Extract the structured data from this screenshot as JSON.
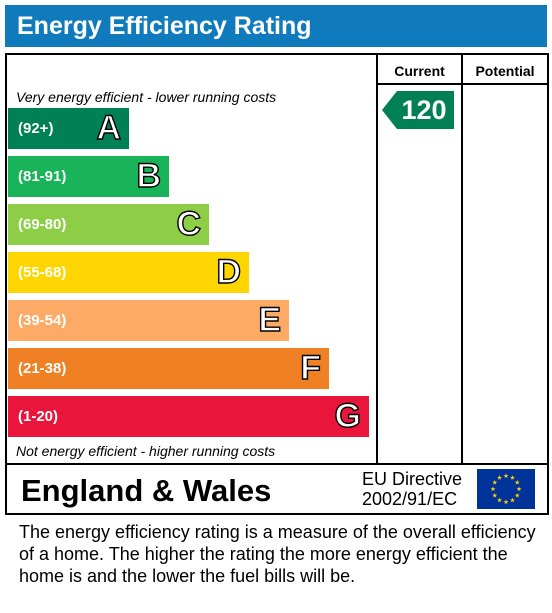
{
  "header": {
    "title": "Energy Efficiency Rating"
  },
  "columns": {
    "current": "Current",
    "potential": "Potential"
  },
  "notes": {
    "top": "Very energy efficient - lower running costs",
    "bottom": "Not energy efficient - higher running costs"
  },
  "bands": [
    {
      "range": "(92+)",
      "letter": "A",
      "color": "#008054"
    },
    {
      "range": "(81-91)",
      "letter": "B",
      "color": "#19b459"
    },
    {
      "range": "(69-80)",
      "letter": "C",
      "color": "#8dce46"
    },
    {
      "range": "(55-68)",
      "letter": "D",
      "color": "#ffd500"
    },
    {
      "range": "(39-54)",
      "letter": "E",
      "color": "#fcaa65"
    },
    {
      "range": "(21-38)",
      "letter": "F",
      "color": "#ef8023"
    },
    {
      "range": "(1-20)",
      "letter": "G",
      "color": "#e9153b"
    }
  ],
  "current_rating": {
    "value": "120",
    "color": "#008054"
  },
  "footer": {
    "country": "England & Wales",
    "directive_line1": "EU Directive",
    "directive_line2": "2002/91/EC",
    "flag_colors": {
      "background": "#003399",
      "stars": "#ffcc00"
    }
  },
  "caption": "The energy efficiency rating is a measure of the overall efficiency of a home.  The higher the rating the more energy efficient the home is and the lower the fuel bills will be."
}
